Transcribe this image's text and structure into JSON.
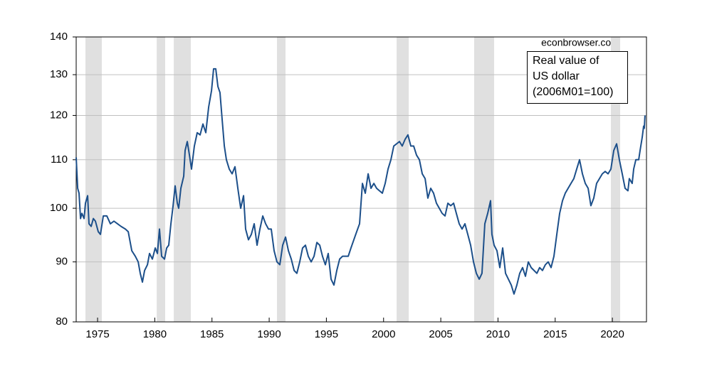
{
  "chart_data": {
    "type": "line",
    "annotation": "econbrowser.com",
    "legend": "upper right",
    "yscale": "log",
    "grid": true,
    "xlim": [
      1973.13,
      2022.98
    ],
    "xticks": [
      1975,
      1980,
      1985,
      1990,
      1995,
      2000,
      2005,
      2010,
      2015,
      2020
    ],
    "ylim": [
      80,
      140
    ],
    "yticks": [
      80,
      90,
      100,
      110,
      120,
      130,
      140
    ],
    "shade_color": "#e0e0e0",
    "shaded_periods": [
      [
        1973.94,
        1975.37
      ],
      [
        1980.17,
        1980.91
      ],
      [
        1981.66,
        1983.15
      ],
      [
        1990.68,
        1991.43
      ],
      [
        2001.14,
        2002.2
      ],
      [
        2007.92,
        2009.66
      ],
      [
        2019.87,
        2020.68
      ]
    ],
    "x": [
      1973.13,
      1973.26,
      1973.38,
      1973.51,
      1973.63,
      1973.82,
      1973.94,
      1974.13,
      1974.25,
      1974.44,
      1974.63,
      1974.81,
      1975.06,
      1975.25,
      1975.5,
      1975.81,
      1976.12,
      1976.43,
      1976.74,
      1977.05,
      1977.43,
      1977.68,
      1977.99,
      1978.3,
      1978.55,
      1978.73,
      1978.92,
      1979.11,
      1979.36,
      1979.54,
      1979.79,
      1980.04,
      1980.23,
      1980.41,
      1980.6,
      1980.85,
      1981.04,
      1981.22,
      1981.41,
      1981.6,
      1981.78,
      1981.97,
      1982.09,
      1982.28,
      1982.53,
      1982.65,
      1982.84,
      1983.03,
      1983.21,
      1983.46,
      1983.71,
      1983.96,
      1984.21,
      1984.46,
      1984.71,
      1984.96,
      1985.14,
      1985.33,
      1985.52,
      1985.7,
      1985.89,
      1986.08,
      1986.26,
      1986.51,
      1986.76,
      1987.01,
      1987.26,
      1987.51,
      1987.76,
      1987.94,
      1988.19,
      1988.44,
      1988.69,
      1988.94,
      1989.19,
      1989.44,
      1989.69,
      1989.94,
      1990.18,
      1990.43,
      1990.68,
      1990.93,
      1991.18,
      1991.43,
      1991.68,
      1991.93,
      1992.18,
      1992.42,
      1992.67,
      1992.92,
      1993.17,
      1993.42,
      1993.67,
      1993.92,
      1994.17,
      1994.42,
      1994.66,
      1994.91,
      1995.16,
      1995.41,
      1995.66,
      1995.91,
      1996.16,
      1996.41,
      1996.66,
      1996.91,
      1997.15,
      1997.4,
      1997.65,
      1997.9,
      1998.15,
      1998.4,
      1998.65,
      1998.9,
      1999.15,
      1999.39,
      1999.64,
      1999.89,
      2000.14,
      2000.39,
      2000.64,
      2000.89,
      2001.14,
      2001.39,
      2001.63,
      2001.88,
      2002.13,
      2002.38,
      2002.63,
      2002.88,
      2003.13,
      2003.38,
      2003.63,
      2003.87,
      2004.12,
      2004.37,
      2004.62,
      2004.87,
      2005.12,
      2005.37,
      2005.62,
      2005.87,
      2006.12,
      2006.36,
      2006.61,
      2006.86,
      2007.11,
      2007.36,
      2007.61,
      2007.86,
      2008.11,
      2008.36,
      2008.6,
      2008.85,
      2009.1,
      2009.35,
      2009.47,
      2009.66,
      2009.91,
      2010.16,
      2010.41,
      2010.66,
      2010.91,
      2011.16,
      2011.4,
      2011.65,
      2011.9,
      2012.15,
      2012.4,
      2012.65,
      2012.9,
      2013.15,
      2013.4,
      2013.64,
      2013.89,
      2014.14,
      2014.39,
      2014.64,
      2014.89,
      2015.14,
      2015.39,
      2015.64,
      2015.88,
      2016.13,
      2016.38,
      2016.63,
      2016.88,
      2017.13,
      2017.38,
      2017.63,
      2017.88,
      2018.12,
      2018.37,
      2018.62,
      2018.87,
      2019.12,
      2019.37,
      2019.62,
      2019.87,
      2020.12,
      2020.37,
      2020.61,
      2020.86,
      2021.11,
      2021.36,
      2021.48,
      2021.73,
      2021.86,
      2022.05,
      2022.3,
      2022.42,
      2022.61,
      2022.73,
      2022.79,
      2022.85
    ],
    "series": [
      {
        "name": "Real value of US dollar (2006M01=100)",
        "color": "#1c4f8a",
        "values": [
          110.5,
          104,
          103,
          98,
          99,
          98,
          101,
          102.5,
          97,
          96.5,
          98,
          97.5,
          95.5,
          95,
          98.5,
          98.5,
          97,
          97.5,
          97,
          96.5,
          96,
          95.5,
          92,
          91,
          90,
          88,
          86.5,
          88.5,
          89.5,
          91.5,
          90.5,
          92.5,
          91.5,
          96,
          91,
          90.5,
          92.5,
          93,
          97,
          100.5,
          104.5,
          101,
          100,
          104,
          106.5,
          112,
          114,
          111,
          108,
          113,
          116,
          115.5,
          118,
          116,
          122,
          126,
          131.5,
          131.5,
          127,
          125.5,
          119,
          113,
          110,
          108,
          107,
          108.5,
          104,
          100,
          102.5,
          96,
          94,
          95,
          97,
          93,
          96,
          98.5,
          97,
          96,
          96,
          92,
          90,
          89.5,
          93,
          94.5,
          92,
          90.5,
          88.5,
          88,
          90,
          92.5,
          93,
          91,
          90,
          91,
          93.5,
          93,
          91,
          89.5,
          91.5,
          87,
          86,
          88.5,
          90.5,
          91,
          91,
          91,
          92.5,
          94,
          95.5,
          97,
          105,
          103,
          107,
          104,
          105,
          104,
          103.5,
          103,
          105,
          108,
          110,
          113,
          113.5,
          114,
          113,
          114.5,
          115.5,
          113,
          113,
          111,
          110,
          107,
          106,
          102,
          104,
          103,
          101,
          100,
          99,
          98.5,
          101,
          100.5,
          101,
          99,
          97,
          96,
          97,
          95,
          93,
          90,
          88,
          87,
          88,
          97,
          99,
          101.5,
          95,
          93,
          92,
          89,
          92.5,
          88,
          87,
          86,
          84.5,
          86,
          88,
          89,
          87.5,
          90,
          89,
          88.5,
          88,
          89,
          88.5,
          89.5,
          90,
          89,
          91,
          95,
          99,
          101.5,
          103,
          104,
          105,
          106,
          108,
          110,
          107,
          105,
          104,
          100.5,
          102,
          105,
          106,
          107,
          107.5,
          107,
          108,
          112,
          113.5,
          110,
          107,
          104,
          103.5,
          106,
          105,
          108,
          110,
          110,
          112,
          115,
          117.5,
          117,
          120
        ]
      }
    ]
  }
}
